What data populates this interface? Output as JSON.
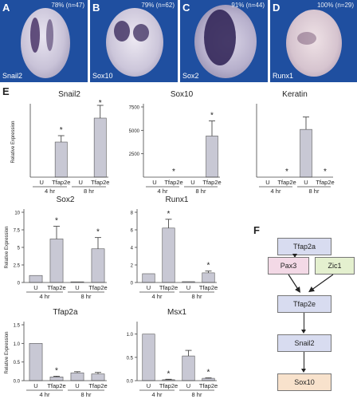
{
  "panels": [
    {
      "letter": "A",
      "gene": "Snail2",
      "pct": "78% (n=47)"
    },
    {
      "letter": "B",
      "gene": "Sox10",
      "pct": "79% (n=62)"
    },
    {
      "letter": "C",
      "gene": "Sox2",
      "pct": "91% (n=44)"
    },
    {
      "letter": "D",
      "gene": "Runx1",
      "pct": "100% (n=29)"
    }
  ],
  "panel_e_label": "E",
  "panel_f_label": "F",
  "chart_data": [
    {
      "type": "bar",
      "title": "Snail2",
      "ylabel": "Relative Expression",
      "categories": [
        "U",
        "Tfap2e",
        "U",
        "Tfap2e"
      ],
      "values": [
        0,
        1100,
        0,
        1850
      ],
      "errors": [
        0,
        200,
        0,
        400
      ],
      "groups": [
        "4 hr",
        "8 hr"
      ],
      "ylim": [
        0,
        2200
      ],
      "ticks": [],
      "stars": [
        false,
        true,
        false,
        true
      ]
    },
    {
      "type": "bar",
      "title": "Sox10",
      "ylabel": "",
      "categories": [
        "U",
        "Tfap2e",
        "U",
        "Tfap2e"
      ],
      "values": [
        0,
        0,
        0,
        4400
      ],
      "errors": [
        0,
        0,
        0,
        1600
      ],
      "groups": [
        "4 hr",
        "8 hr"
      ],
      "ylim": [
        0,
        7500
      ],
      "ticks": [
        {
          "v": 7500,
          "t": "7500"
        },
        {
          "v": 5000,
          "t": "5000"
        },
        {
          "v": 2500,
          "t": "2500"
        }
      ],
      "stars": [
        false,
        true,
        false,
        true
      ]
    },
    {
      "type": "bar",
      "title": "Keratin",
      "ylabel": "",
      "categories": [
        "U",
        "Tfap2e",
        "U",
        "Tfap2e"
      ],
      "values": [
        0,
        0,
        85,
        0
      ],
      "errors": [
        0,
        0,
        22,
        0
      ],
      "groups": [
        "4 hr",
        "8 hr"
      ],
      "ylim": [
        0,
        125
      ],
      "ticks": [],
      "stars": [
        false,
        true,
        false,
        true
      ]
    },
    {
      "type": "bar",
      "title": "Sox2",
      "ylabel": "Relative Expression",
      "categories": [
        "U",
        "Tfap2e",
        "U",
        "Tfap2e"
      ],
      "values": [
        1,
        6.2,
        0.1,
        4.8
      ],
      "errors": [
        0,
        1.8,
        0,
        1.6
      ],
      "groups": [
        "4 hr",
        "8 hr"
      ],
      "ylim": [
        0,
        10
      ],
      "ticks": [
        {
          "v": 10,
          "t": "10"
        },
        {
          "v": 7.5,
          "t": "7.5"
        },
        {
          "v": 5,
          "t": "5"
        },
        {
          "v": 2.5,
          "t": "2.5"
        },
        {
          "v": 0,
          "t": "0"
        }
      ],
      "stars": [
        false,
        true,
        false,
        true
      ]
    },
    {
      "type": "bar",
      "title": "Runx1",
      "ylabel": "",
      "categories": [
        "U",
        "Tfap2e",
        "U",
        "Tfap2e"
      ],
      "values": [
        1,
        6.2,
        0.1,
        1.1
      ],
      "errors": [
        0,
        1,
        0,
        0.2
      ],
      "groups": [
        "4 hr",
        "8 hr"
      ],
      "ylim": [
        0,
        8
      ],
      "ticks": [
        {
          "v": 8,
          "t": "8"
        },
        {
          "v": 6,
          "t": "6"
        },
        {
          "v": 4,
          "t": "4"
        },
        {
          "v": 2,
          "t": "2"
        },
        {
          "v": 0,
          "t": "0"
        }
      ],
      "stars": [
        false,
        true,
        false,
        true
      ]
    },
    {
      "type": "bar",
      "title": "Tfap2a",
      "ylabel": "Relative Expression",
      "categories": [
        "U",
        "Tfap2e",
        "U",
        "Tfap2e"
      ],
      "values": [
        1,
        0.1,
        0.21,
        0.18
      ],
      "errors": [
        0,
        0.02,
        0.03,
        0.04
      ],
      "groups": [
        "4 hr",
        "8 hr"
      ],
      "ylim": [
        0,
        1.5
      ],
      "ticks": [
        {
          "v": 1.5,
          "t": "1.5"
        },
        {
          "v": 1,
          "t": "1.0"
        },
        {
          "v": 0.5,
          "t": "0.5"
        },
        {
          "v": 0,
          "t": "0.0"
        }
      ],
      "stars": [
        false,
        true,
        false,
        false
      ]
    },
    {
      "type": "bar",
      "title": "Msx1",
      "ylabel": "",
      "categories": [
        "U",
        "Tfap2e",
        "U",
        "Tfap2e"
      ],
      "values": [
        1,
        0.02,
        0.53,
        0.05
      ],
      "errors": [
        0,
        0.01,
        0.12,
        0.01
      ],
      "groups": [
        "4 hr",
        "8 hr"
      ],
      "ylim": [
        0,
        1.2
      ],
      "ticks": [
        {
          "v": 1,
          "t": "1.0"
        },
        {
          "v": 0.5,
          "t": "0.5"
        },
        {
          "v": 0,
          "t": "0.0"
        }
      ],
      "stars": [
        false,
        true,
        false,
        true
      ]
    }
  ],
  "flow": {
    "tfap2a": "Tfap2a",
    "pax3": "Pax3",
    "zic1": "Zic1",
    "tfap2e": "Tfap2e",
    "snail2": "Snail2",
    "sox10": "Sox10"
  },
  "colors": {
    "bar": "#c8c8d4",
    "bar_edge": "#555555",
    "pax3": "#f3d9e6",
    "zic1": "#e4f0cf",
    "tfap2a_box": "#d8dcf0",
    "tfap2e_box": "#d8dcf0",
    "snail2_box": "#d8dcf0",
    "sox10_box": "#f8e2cc",
    "photo_bg": "#1f4fa0"
  }
}
